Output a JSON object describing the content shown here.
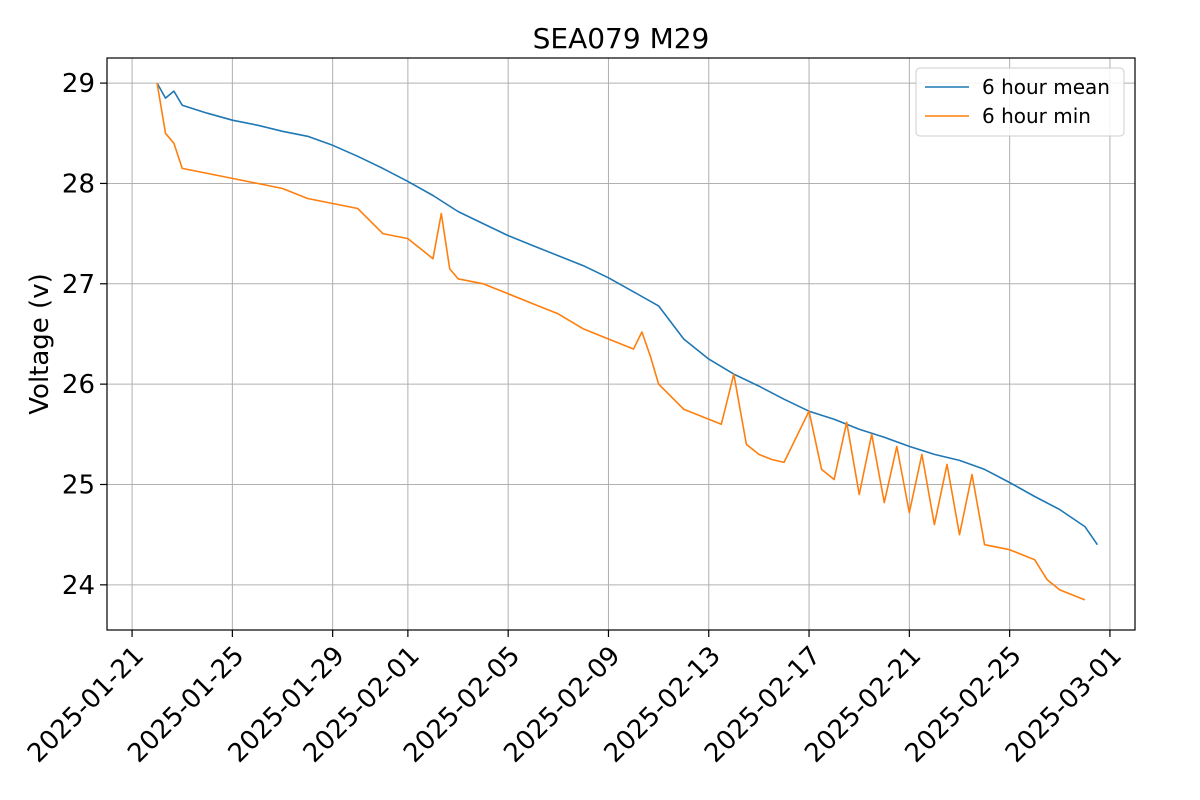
{
  "chart_data": {
    "type": "line",
    "title": "SEA079 M29",
    "xlabel": "",
    "ylabel": "Voltage (v)",
    "x_type": "date",
    "xlim": [
      "2025-01-20",
      "2025-03-02"
    ],
    "ylim": [
      23.55,
      29.25
    ],
    "x_ticks": [
      "2025-01-21",
      "2025-01-25",
      "2025-01-29",
      "2025-02-01",
      "2025-02-05",
      "2025-02-09",
      "2025-02-13",
      "2025-02-17",
      "2025-02-21",
      "2025-02-25",
      "2025-03-01"
    ],
    "y_ticks": [
      24,
      25,
      26,
      27,
      28,
      29
    ],
    "grid": true,
    "legend": {
      "placement": "top-right",
      "entries": [
        "6 hour mean",
        "6 hour min"
      ]
    },
    "series": [
      {
        "name": "6 hour mean",
        "color": "#1f77b4",
        "x": [
          "2025-01-22",
          "2025-01-22",
          "2025-01-22",
          "2025-01-23",
          "2025-01-24",
          "2025-01-25",
          "2025-01-26",
          "2025-01-27",
          "2025-01-28",
          "2025-01-29",
          "2025-01-30",
          "2025-01-31",
          "2025-02-01",
          "2025-02-02",
          "2025-02-03",
          "2025-02-04",
          "2025-02-05",
          "2025-02-06",
          "2025-02-07",
          "2025-02-08",
          "2025-02-09",
          "2025-02-10",
          "2025-02-11",
          "2025-02-12",
          "2025-02-13",
          "2025-02-14",
          "2025-02-15",
          "2025-02-16",
          "2025-02-17",
          "2025-02-18",
          "2025-02-19",
          "2025-02-20",
          "2025-02-21",
          "2025-02-22",
          "2025-02-23",
          "2025-02-24",
          "2025-02-25",
          "2025-02-26",
          "2025-02-27",
          "2025-02-28",
          "2025-02-28"
        ],
        "y": [
          29.0,
          28.85,
          28.92,
          28.78,
          28.7,
          28.63,
          28.58,
          28.52,
          28.47,
          28.38,
          28.27,
          28.15,
          28.02,
          27.88,
          27.72,
          27.6,
          27.48,
          27.38,
          27.28,
          27.18,
          27.06,
          26.92,
          26.78,
          26.45,
          26.25,
          26.1,
          25.98,
          25.85,
          25.73,
          25.65,
          25.55,
          25.47,
          25.38,
          25.3,
          25.24,
          25.15,
          25.02,
          24.88,
          24.75,
          24.58,
          24.4
        ]
      },
      {
        "name": "6 hour min",
        "color": "#ff7f0e",
        "x": [
          "2025-01-22",
          "2025-01-22",
          "2025-01-22",
          "2025-01-23",
          "2025-01-24",
          "2025-01-25",
          "2025-01-26",
          "2025-01-27",
          "2025-01-28",
          "2025-01-29",
          "2025-01-30",
          "2025-01-31",
          "2025-02-01",
          "2025-02-02",
          "2025-02-02",
          "2025-02-02",
          "2025-02-03",
          "2025-02-04",
          "2025-02-05",
          "2025-02-06",
          "2025-02-07",
          "2025-02-08",
          "2025-02-09",
          "2025-02-10",
          "2025-02-10",
          "2025-02-10",
          "2025-02-11",
          "2025-02-12",
          "2025-02-13",
          "2025-02-13",
          "2025-02-14",
          "2025-02-14",
          "2025-02-15",
          "2025-02-15",
          "2025-02-16",
          "2025-02-17",
          "2025-02-17",
          "2025-02-18",
          "2025-02-18",
          "2025-02-19",
          "2025-02-19",
          "2025-02-20",
          "2025-02-20",
          "2025-02-21",
          "2025-02-21",
          "2025-02-22",
          "2025-02-22",
          "2025-02-23",
          "2025-02-23",
          "2025-02-24",
          "2025-02-25",
          "2025-02-25",
          "2025-02-26",
          "2025-02-26",
          "2025-02-27",
          "2025-02-28"
        ],
        "y": [
          29.0,
          28.5,
          28.4,
          28.15,
          28.1,
          28.05,
          28.0,
          27.95,
          27.85,
          27.8,
          27.75,
          27.5,
          27.45,
          27.25,
          27.7,
          27.15,
          27.05,
          27.0,
          26.9,
          26.8,
          26.7,
          26.55,
          26.45,
          26.35,
          26.52,
          26.28,
          26.0,
          25.75,
          25.65,
          25.6,
          26.1,
          25.4,
          25.3,
          25.25,
          25.22,
          25.73,
          25.15,
          25.05,
          25.62,
          24.9,
          25.5,
          24.82,
          25.38,
          24.72,
          25.3,
          24.6,
          25.2,
          24.5,
          25.1,
          24.4,
          24.35,
          24.3,
          24.25,
          24.05,
          23.95,
          23.85
        ]
      }
    ]
  }
}
